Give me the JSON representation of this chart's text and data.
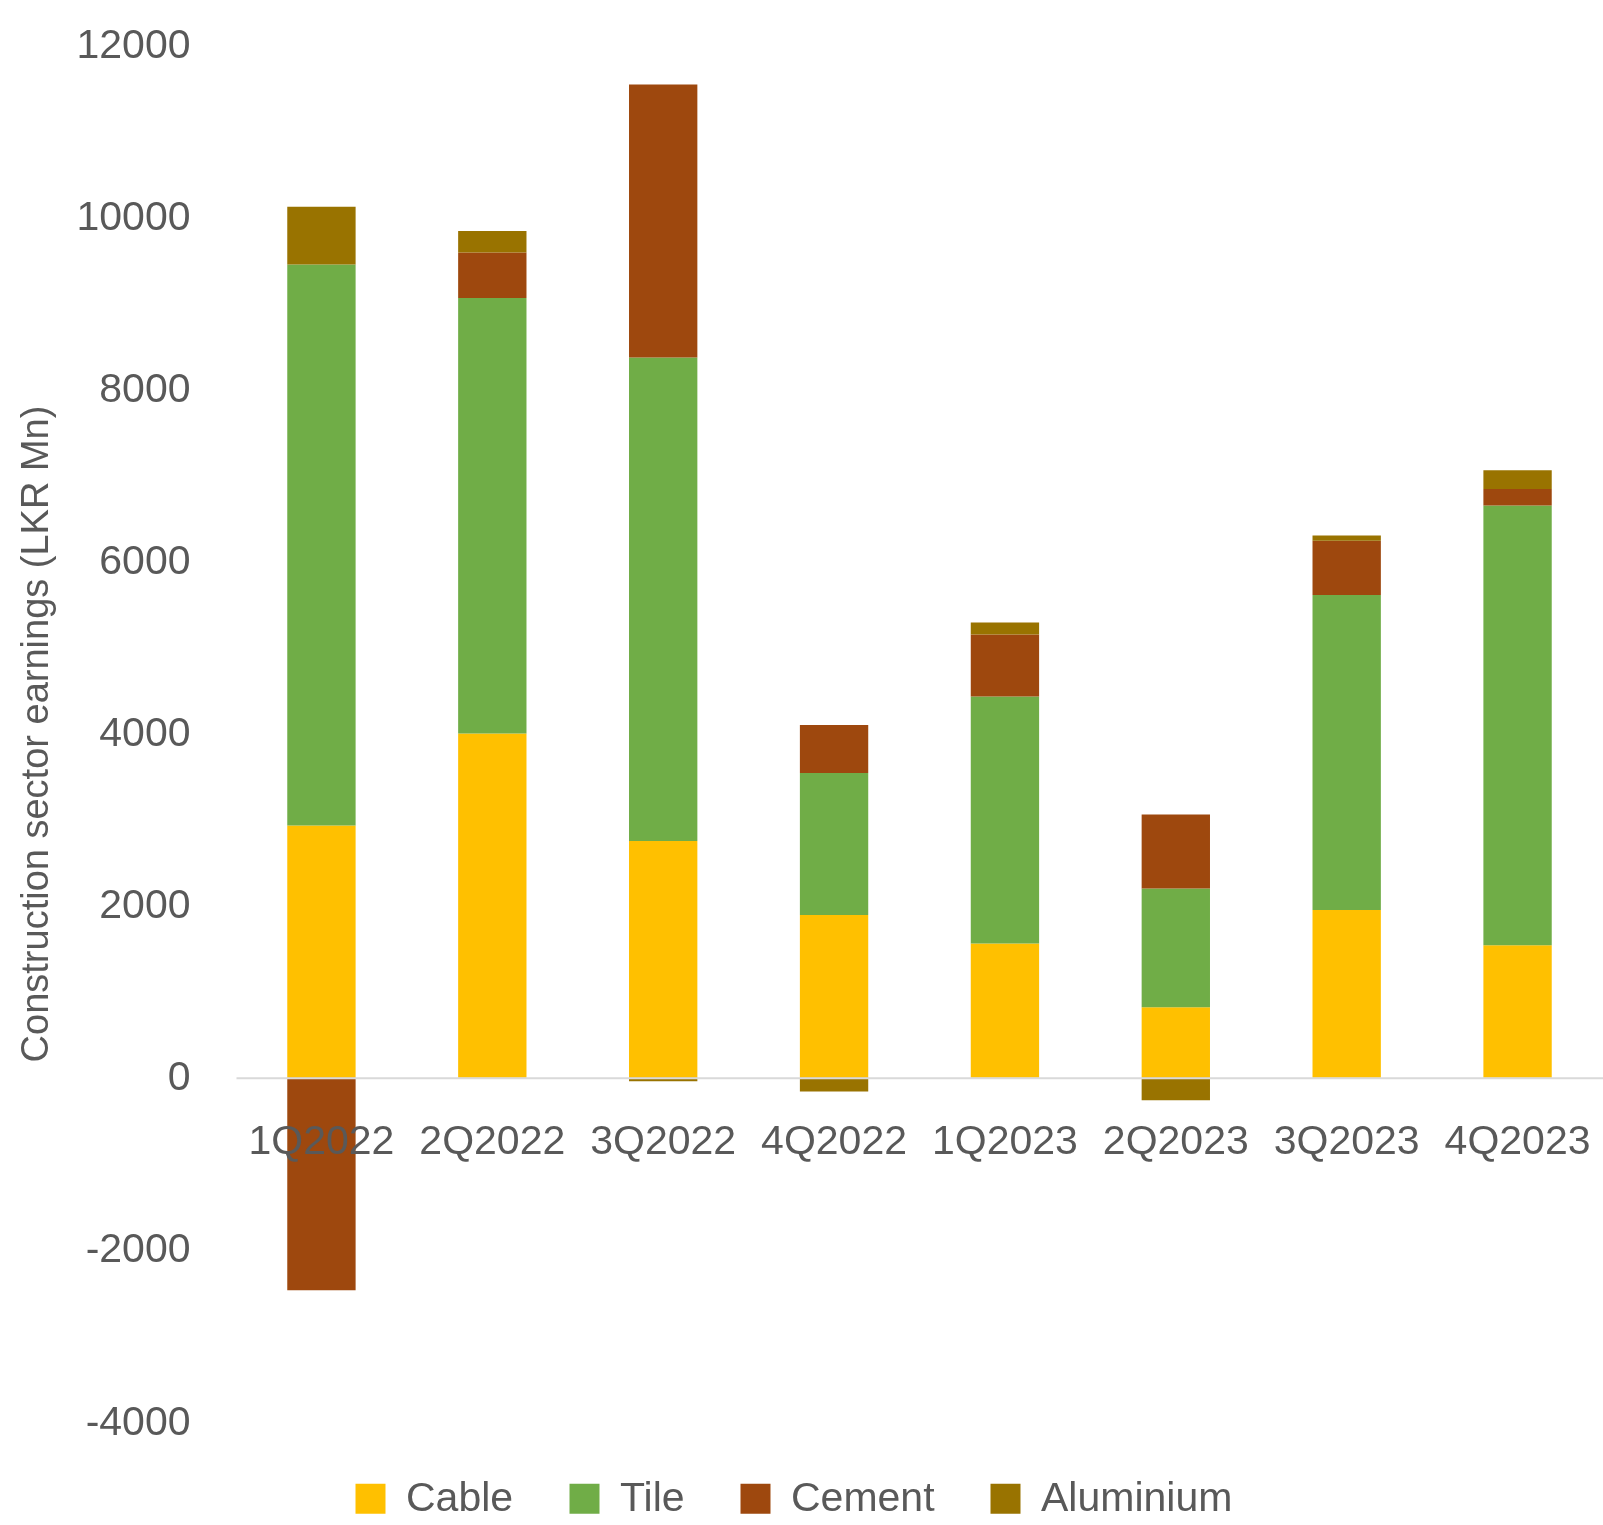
{
  "chart_data": {
    "type": "bar",
    "stacked": true,
    "categories": [
      "1Q2022",
      "2Q2022",
      "3Q2022",
      "4Q2022",
      "1Q2023",
      "2Q2023",
      "3Q2023",
      "4Q2023"
    ],
    "ylabel": "Construction sector earnings (LKR Mn)",
    "ylim": [
      -4000,
      12000
    ],
    "yticks": [
      -4000,
      -2000,
      0,
      2000,
      4000,
      6000,
      8000,
      10000,
      12000
    ],
    "legend": "bottom",
    "series": [
      {
        "name": "Cable",
        "color": "#ffc000",
        "values": [
          2930,
          4000,
          2750,
          1890,
          1560,
          820,
          1950,
          1540
        ]
      },
      {
        "name": "Tile",
        "color": "#70ad47",
        "values": [
          6520,
          5060,
          5620,
          1650,
          2870,
          1380,
          3660,
          5110
        ]
      },
      {
        "name": "Cement",
        "color": "#9e480e",
        "values": [
          -2470,
          530,
          3170,
          560,
          720,
          860,
          630,
          190
        ]
      },
      {
        "name": "Aluminium",
        "color": "#997300",
        "values": [
          670,
          250,
          -40,
          -160,
          140,
          -260,
          60,
          220
        ]
      }
    ]
  }
}
